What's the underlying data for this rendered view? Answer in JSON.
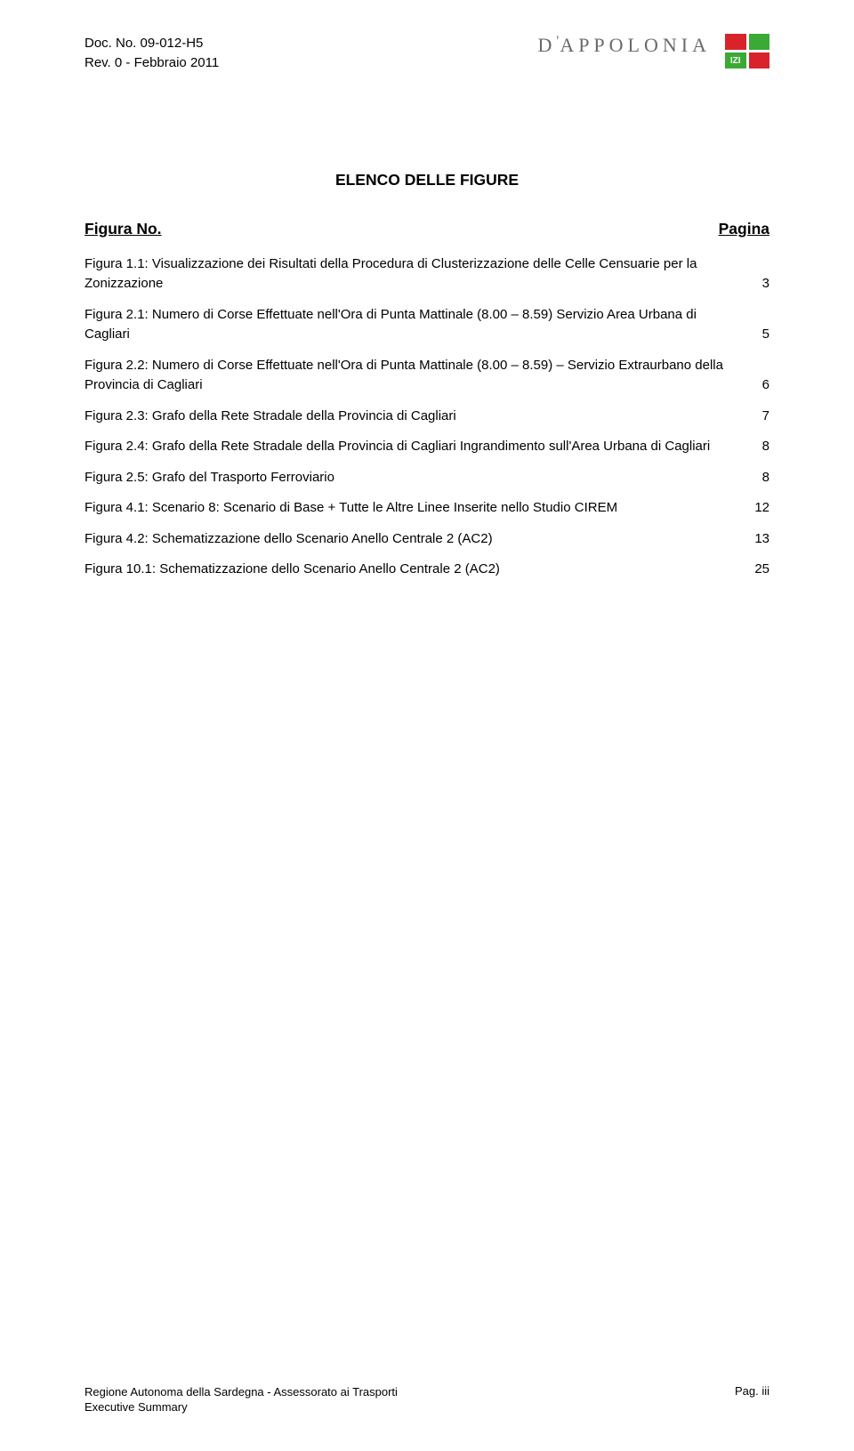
{
  "header": {
    "doc_no": "Doc. No. 09-012-H5",
    "rev": "Rev. 0 - Febbraio 2011",
    "brand": "D'APPOLONIA"
  },
  "title": "ELENCO DELLE FIGURE",
  "subhead": {
    "left": "Figura No.",
    "right": "Pagina"
  },
  "entries": [
    {
      "text": "Figura 1.1: Visualizzazione dei Risultati della Procedura di Clusterizzazione  delle Celle Censuarie per la Zonizzazione",
      "page": "3"
    },
    {
      "text": "Figura 2.1: Numero di Corse Effettuate nell'Ora di Punta Mattinale (8.00 – 8.59) Servizio Area Urbana di Cagliari",
      "page": "5"
    },
    {
      "text": "Figura 2.2: Numero di Corse Effettuate nell'Ora di Punta Mattinale (8.00 – 8.59) – Servizio Extraurbano della Provincia di Cagliari",
      "page": "6"
    },
    {
      "text": "Figura 2.3: Grafo della Rete Stradale della Provincia di Cagliari",
      "page": "7"
    },
    {
      "text": "Figura 2.4: Grafo della Rete Stradale della Provincia di Cagliari Ingrandimento sull'Area Urbana di Cagliari",
      "page": "8"
    },
    {
      "text": "Figura 2.5: Grafo del Trasporto Ferroviario",
      "page": "8"
    },
    {
      "text": "Figura 4.1: Scenario 8: Scenario di Base + Tutte le Altre Linee Inserite nello Studio CIREM",
      "page": "12"
    },
    {
      "text": "Figura 4.2: Schematizzazione dello Scenario Anello Centrale 2 (AC2)",
      "page": "13"
    },
    {
      "text": "Figura 10.1: Schematizzazione dello Scenario Anello Centrale 2 (AC2)",
      "page": "25"
    }
  ],
  "footer": {
    "left_line1": "Regione Autonoma della Sardegna - Assessorato ai Trasporti",
    "left_line2": "Executive Summary",
    "right": "Pag. iii"
  }
}
